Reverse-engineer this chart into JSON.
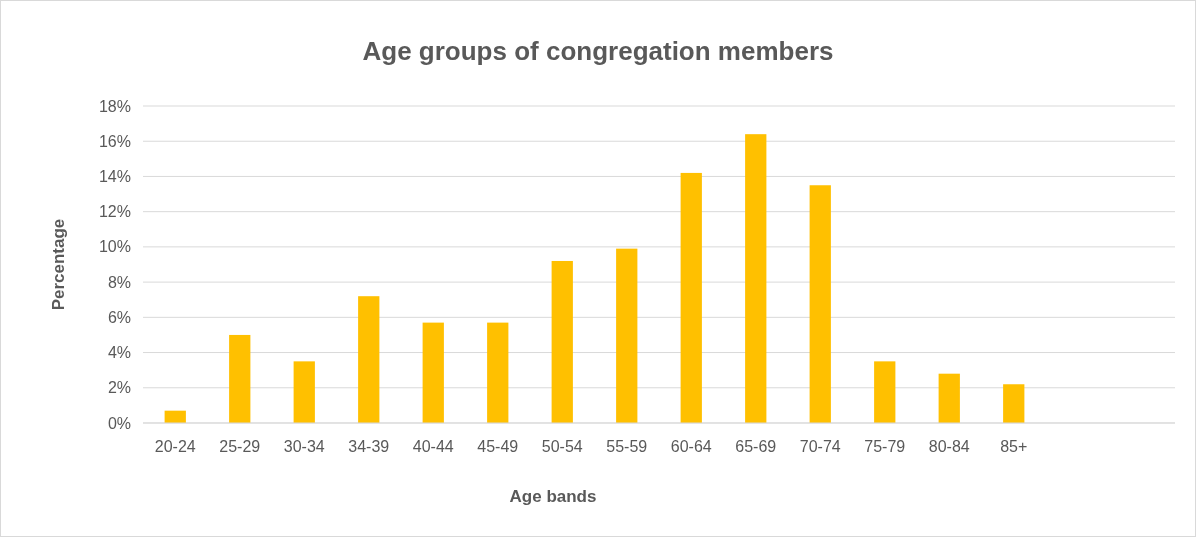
{
  "chart_data": {
    "type": "bar",
    "title": "Age groups of congregation members",
    "xlabel": "Age bands",
    "ylabel": "Percentage",
    "categories": [
      "20-24",
      "25-29",
      "30-34",
      "34-39",
      "40-44",
      "45-49",
      "50-54",
      "55-59",
      "60-64",
      "65-69",
      "70-74",
      "75-79",
      "80-84",
      "85+",
      null,
      null
    ],
    "values": [
      0.7,
      5.0,
      3.5,
      7.2,
      5.7,
      5.7,
      9.2,
      9.9,
      14.2,
      16.4,
      13.5,
      3.5,
      2.8,
      2.2,
      null,
      null
    ],
    "color": "#ffc000",
    "ylim": [
      0,
      18
    ],
    "yticks": [
      {
        "value": 0,
        "label": "0%"
      },
      {
        "value": 2,
        "label": "2%"
      },
      {
        "value": 4,
        "label": "4%"
      },
      {
        "value": 6,
        "label": "6%"
      },
      {
        "value": 8,
        "label": "8%"
      },
      {
        "value": 10,
        "label": "10%"
      },
      {
        "value": 12,
        "label": "12%"
      },
      {
        "value": 14,
        "label": "14%"
      },
      {
        "value": 16,
        "label": "16%"
      },
      {
        "value": 18,
        "label": "18%"
      }
    ],
    "grid": "y"
  }
}
